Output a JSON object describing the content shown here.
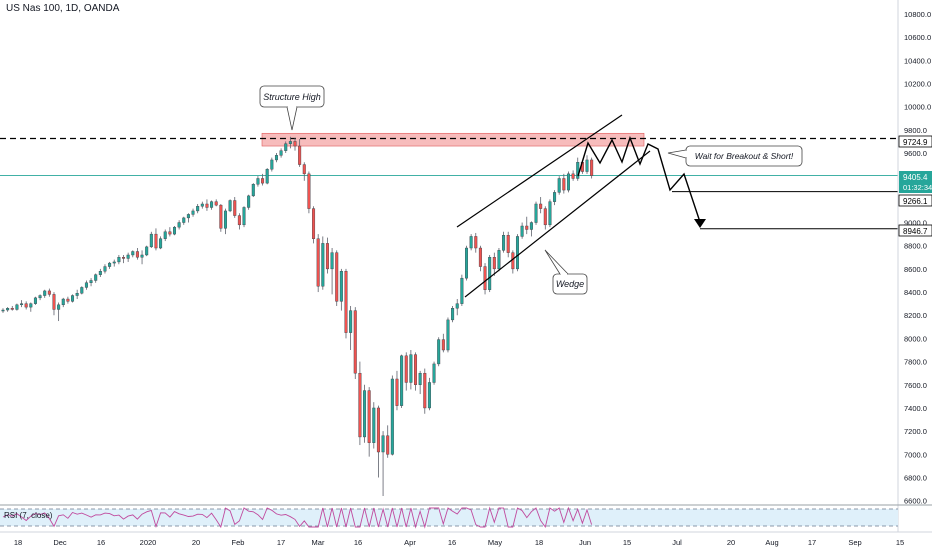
{
  "header": {
    "symbol": "US Nas 100, 1D, OANDA"
  },
  "chart_data": {
    "type": "candlestick",
    "x_tick_labels": [
      "18",
      "Dec",
      "16",
      "2020",
      "20",
      "Feb",
      "17",
      "Mar",
      "16",
      "Apr",
      "16",
      "May",
      "18",
      "Jun",
      "15",
      "Jul",
      "20",
      "Aug",
      "17",
      "Sep",
      "15"
    ],
    "y_tick_labels": [
      "10800.0",
      "10600.0",
      "10400.0",
      "10200.0",
      "10000.0",
      "9800.0",
      "9600.0",
      "9400.0",
      "9200.0",
      "9000.0",
      "8800.0",
      "8600.0",
      "8400.0",
      "8200.0",
      "8000.0",
      "7800.0",
      "7600.0",
      "7400.0",
      "7200.0",
      "7000.0",
      "6800.0",
      "6600.0"
    ],
    "y_ticks": [
      10800,
      10600,
      10400,
      10200,
      10000,
      9800,
      9600,
      9400,
      9200,
      9000,
      8800,
      8600,
      8400,
      8200,
      8000,
      7800,
      7600,
      7400,
      7200,
      7000,
      6800,
      6600
    ],
    "ylim": [
      6580,
      10920
    ],
    "price_labels": {
      "resistance": "9724.9",
      "current": "9405.4",
      "countdown": "01:32:34",
      "target1": "9266.1",
      "target2": "8946.7"
    },
    "price_levels": {
      "resistance": 9724.9,
      "current": 9405.4,
      "target1": 9266.1,
      "target2": 8946.7
    },
    "annotations": {
      "structure_high": "Structure High",
      "breakout": "Wait for Breakout & Short!",
      "wedge": "Wedge"
    },
    "supply_zone": {
      "low": 9660,
      "high": 9770
    },
    "rsi": {
      "label": "RSI (7, close)",
      "overbought": 80,
      "oversold": 20
    },
    "colors": {
      "up": "#26a69a",
      "down": "#ef5350",
      "zone": "#f4a6a6",
      "current_line": "#26a69a",
      "rsi_line": "#c04a9e",
      "rsi_band": "#dff0fa"
    },
    "candles": [
      [
        8240,
        8260,
        8220,
        8245
      ],
      [
        8245,
        8270,
        8230,
        8260
      ],
      [
        8260,
        8280,
        8240,
        8250
      ],
      [
        8250,
        8300,
        8240,
        8290
      ],
      [
        8290,
        8330,
        8270,
        8300
      ],
      [
        8300,
        8320,
        8250,
        8270
      ],
      [
        8270,
        8310,
        8230,
        8300
      ],
      [
        8300,
        8360,
        8290,
        8350
      ],
      [
        8350,
        8380,
        8330,
        8370
      ],
      [
        8370,
        8420,
        8350,
        8410
      ],
      [
        8410,
        8430,
        8360,
        8380
      ],
      [
        8380,
        8400,
        8200,
        8250
      ],
      [
        8250,
        8310,
        8150,
        8290
      ],
      [
        8290,
        8350,
        8270,
        8340
      ],
      [
        8340,
        8360,
        8300,
        8320
      ],
      [
        8320,
        8380,
        8310,
        8370
      ],
      [
        8370,
        8420,
        8340,
        8390
      ],
      [
        8390,
        8450,
        8380,
        8440
      ],
      [
        8440,
        8500,
        8420,
        8480
      ],
      [
        8480,
        8520,
        8450,
        8500
      ],
      [
        8500,
        8560,
        8480,
        8550
      ],
      [
        8550,
        8600,
        8530,
        8580
      ],
      [
        8580,
        8640,
        8560,
        8620
      ],
      [
        8620,
        8660,
        8600,
        8650
      ],
      [
        8650,
        8680,
        8620,
        8660
      ],
      [
        8660,
        8720,
        8640,
        8700
      ],
      [
        8700,
        8720,
        8650,
        8690
      ],
      [
        8690,
        8740,
        8660,
        8720
      ],
      [
        8720,
        8760,
        8700,
        8750
      ],
      [
        8750,
        8780,
        8680,
        8700
      ],
      [
        8700,
        8760,
        8640,
        8720
      ],
      [
        8720,
        8800,
        8710,
        8790
      ],
      [
        8790,
        8920,
        8780,
        8900
      ],
      [
        8900,
        8950,
        8760,
        8780
      ],
      [
        8780,
        8880,
        8770,
        8860
      ],
      [
        8860,
        8940,
        8840,
        8920
      ],
      [
        8920,
        8960,
        8880,
        8900
      ],
      [
        8900,
        8970,
        8890,
        8960
      ],
      [
        8960,
        9020,
        8940,
        9000
      ],
      [
        9000,
        9050,
        8980,
        9040
      ],
      [
        9040,
        9080,
        9000,
        9070
      ],
      [
        9070,
        9120,
        9050,
        9100
      ],
      [
        9100,
        9160,
        9080,
        9140
      ],
      [
        9140,
        9180,
        9120,
        9160
      ],
      [
        9160,
        9200,
        9100,
        9130
      ],
      [
        9130,
        9190,
        9110,
        9180
      ],
      [
        9180,
        9200,
        9140,
        9150
      ],
      [
        9150,
        9160,
        8920,
        8950
      ],
      [
        8950,
        9120,
        8900,
        9100
      ],
      [
        9100,
        9200,
        9090,
        9190
      ],
      [
        9190,
        9220,
        9040,
        9060
      ],
      [
        9060,
        9080,
        8940,
        8980
      ],
      [
        8980,
        9140,
        8960,
        9130
      ],
      [
        9130,
        9240,
        9110,
        9230
      ],
      [
        9230,
        9340,
        9220,
        9330
      ],
      [
        9330,
        9400,
        9310,
        9380
      ],
      [
        9380,
        9420,
        9320,
        9340
      ],
      [
        9340,
        9470,
        9330,
        9460
      ],
      [
        9460,
        9560,
        9440,
        9540
      ],
      [
        9540,
        9600,
        9520,
        9580
      ],
      [
        9580,
        9640,
        9560,
        9620
      ],
      [
        9620,
        9700,
        9600,
        9680
      ],
      [
        9680,
        9740,
        9640,
        9700
      ],
      [
        9700,
        9730,
        9620,
        9660
      ],
      [
        9660,
        9720,
        9480,
        9500
      ],
      [
        9500,
        9520,
        9360,
        9420
      ],
      [
        9420,
        9440,
        9080,
        9120
      ],
      [
        9120,
        9140,
        8820,
        8860
      ],
      [
        8860,
        8900,
        8400,
        8450
      ],
      [
        8450,
        8880,
        8420,
        8820
      ],
      [
        8820,
        8870,
        8560,
        8600
      ],
      [
        8600,
        8780,
        8380,
        8740
      ],
      [
        8740,
        8760,
        8280,
        8320
      ],
      [
        8320,
        8600,
        8240,
        8580
      ],
      [
        8580,
        8600,
        8000,
        8050
      ],
      [
        8050,
        8280,
        7900,
        8240
      ],
      [
        8240,
        8270,
        7650,
        7700
      ],
      [
        7700,
        7800,
        7080,
        7150
      ],
      [
        7150,
        7600,
        7100,
        7550
      ],
      [
        7550,
        7580,
        6980,
        7100
      ],
      [
        7100,
        7450,
        7050,
        7400
      ],
      [
        7400,
        7420,
        6800,
        7020
      ],
      [
        7020,
        7200,
        6640,
        7160
      ],
      [
        7160,
        7250,
        6970,
        7000
      ],
      [
        7000,
        7680,
        6990,
        7650
      ],
      [
        7650,
        7720,
        7380,
        7420
      ],
      [
        7420,
        7860,
        7400,
        7850
      ],
      [
        7850,
        7880,
        7550,
        7620
      ],
      [
        7620,
        7900,
        7560,
        7860
      ],
      [
        7860,
        7880,
        7550,
        7600
      ],
      [
        7600,
        7720,
        7520,
        7700
      ],
      [
        7700,
        7740,
        7350,
        7400
      ],
      [
        7400,
        7660,
        7380,
        7620
      ],
      [
        7620,
        7800,
        7600,
        7780
      ],
      [
        7780,
        8010,
        7760,
        7990
      ],
      [
        7990,
        8040,
        7880,
        7900
      ],
      [
        7900,
        8180,
        7880,
        8160
      ],
      [
        8160,
        8280,
        8140,
        8260
      ],
      [
        8260,
        8340,
        8200,
        8300
      ],
      [
        8300,
        8550,
        8280,
        8520
      ],
      [
        8520,
        8800,
        8500,
        8780
      ],
      [
        8780,
        8900,
        8760,
        8880
      ],
      [
        8880,
        8910,
        8740,
        8780
      ],
      [
        8780,
        8800,
        8580,
        8620
      ],
      [
        8620,
        8650,
        8380,
        8420
      ],
      [
        8420,
        8720,
        8400,
        8700
      ],
      [
        8700,
        8740,
        8540,
        8600
      ],
      [
        8600,
        8780,
        8580,
        8760
      ],
      [
        8760,
        8920,
        8740,
        8890
      ],
      [
        8890,
        8920,
        8700,
        8740
      ],
      [
        8740,
        8760,
        8560,
        8600
      ],
      [
        8600,
        8900,
        8580,
        8880
      ],
      [
        8880,
        9000,
        8860,
        8970
      ],
      [
        8970,
        9050,
        8900,
        8940
      ],
      [
        8940,
        9010,
        8880,
        9000
      ],
      [
        9000,
        9180,
        8980,
        9160
      ],
      [
        9160,
        9220,
        9080,
        9120
      ],
      [
        9120,
        9140,
        8940,
        8980
      ],
      [
        8980,
        9200,
        8960,
        9180
      ],
      [
        9180,
        9280,
        9150,
        9260
      ],
      [
        9260,
        9400,
        9240,
        9380
      ],
      [
        9380,
        9420,
        9250,
        9280
      ],
      [
        9280,
        9440,
        9260,
        9420
      ],
      [
        9420,
        9450,
        9360,
        9380
      ],
      [
        9380,
        9560,
        9360,
        9520
      ],
      [
        9520,
        9540,
        9420,
        9440
      ],
      [
        9440,
        9580,
        9420,
        9540
      ],
      [
        9540,
        9560,
        9380,
        9405
      ]
    ]
  }
}
